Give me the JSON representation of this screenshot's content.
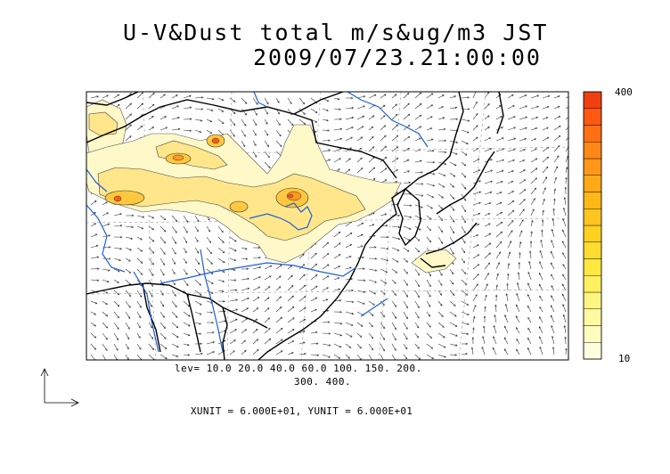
{
  "title": {
    "line1": "U-V&Dust total m/s&ug/m3 JST",
    "line2": "2009/07/23.21:00:00"
  },
  "contour_levels": {
    "line1": "lev= 10.0 20.0 40.0 60.0 100. 150. 200.",
    "line2": "300. 400."
  },
  "units_label": "XUNIT = 6.000E+01, YUNIT = 6.000E+01",
  "colorbar": {
    "max_label": "400",
    "min_label": "10",
    "colors": [
      "#ffffe0",
      "#fffcc0",
      "#fff9a0",
      "#fff580",
      "#fff060",
      "#ffe840",
      "#ffdc30",
      "#ffd020",
      "#ffc420",
      "#ffb818",
      "#ffa818",
      "#ff9818",
      "#ff8818",
      "#ff7014",
      "#ff5810",
      "#f04010"
    ]
  },
  "map": {
    "coastline_color": "#000000",
    "river_color": "#1f5fd6",
    "grid_color": "#999999",
    "dust_fill_colors": [
      "#fff8c8",
      "#ffe68a",
      "#ffc840",
      "#ff9a20",
      "#ff5a14"
    ]
  }
}
